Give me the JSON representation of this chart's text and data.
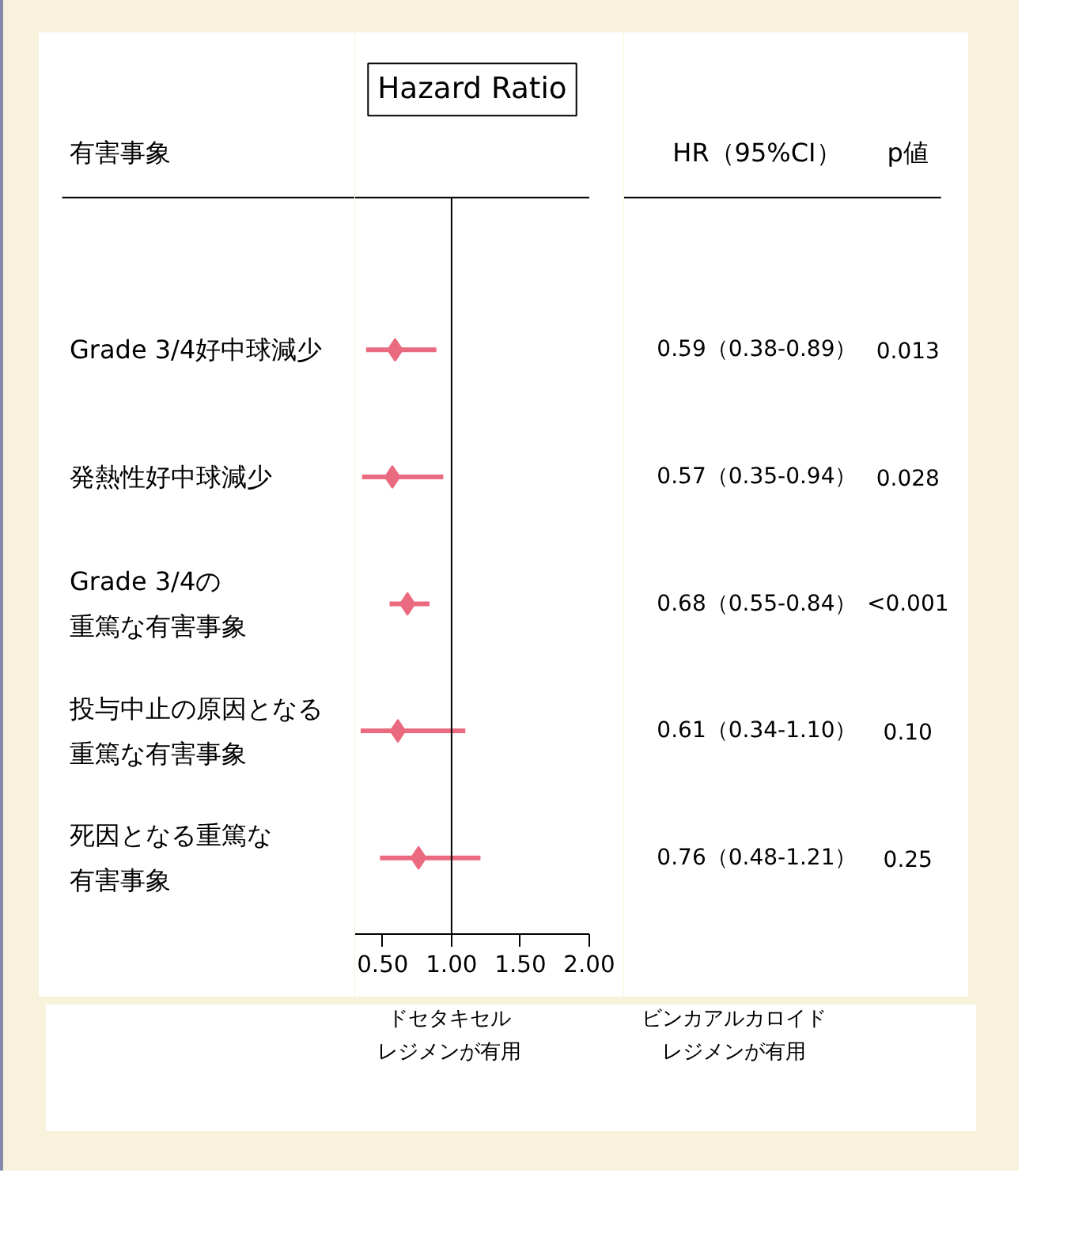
{
  "chart_data": {
    "type": "scatter",
    "orientation": "horizontal",
    "title": "Hazard Ratio",
    "ylabel": "有害事象",
    "categories": [
      "Grade 3/4好中球減少",
      "発熱性好中球減少",
      "Grade 3/4の重篤な有害事象",
      "投与中止の原因となる重篤な有害事象",
      "死因となる重篤な有害事象"
    ],
    "values": [
      0.59,
      0.57,
      0.68,
      0.61,
      0.76
    ],
    "errors": [
      [
        0.38,
        0.89
      ],
      [
        0.35,
        0.94
      ],
      [
        0.55,
        0.84
      ],
      [
        0.34,
        1.1
      ],
      [
        0.48,
        1.21
      ]
    ],
    "value_labels": [
      "0.59（0.38-0.89）",
      "0.57（0.35-0.94）",
      "0.68（0.55-0.84）",
      "0.61（0.34-1.10）",
      "0.76（0.48-1.21）"
    ],
    "color": "#ea6b80",
    "marker": "diamond",
    "xlim": [
      0.3,
      2.0
    ],
    "xticks": [
      {
        "value": 0.5,
        "label": "0.50"
      },
      {
        "value": 1.0,
        "label": "1.00"
      },
      {
        "value": 1.5,
        "label": "1.50"
      },
      {
        "value": 2.0,
        "label": "2.00"
      }
    ],
    "ref_lines": [
      {
        "axis": "x",
        "value": 1.0,
        "color": "#000000"
      }
    ],
    "annotations": [
      "HR（95%CI）",
      "p値",
      "ドセタキセルレジメンが有用",
      "ビンカアルカロイドレジメンが有用",
      "0.013",
      "0.028",
      "<0.001",
      "0.10",
      "0.25"
    ]
  }
}
